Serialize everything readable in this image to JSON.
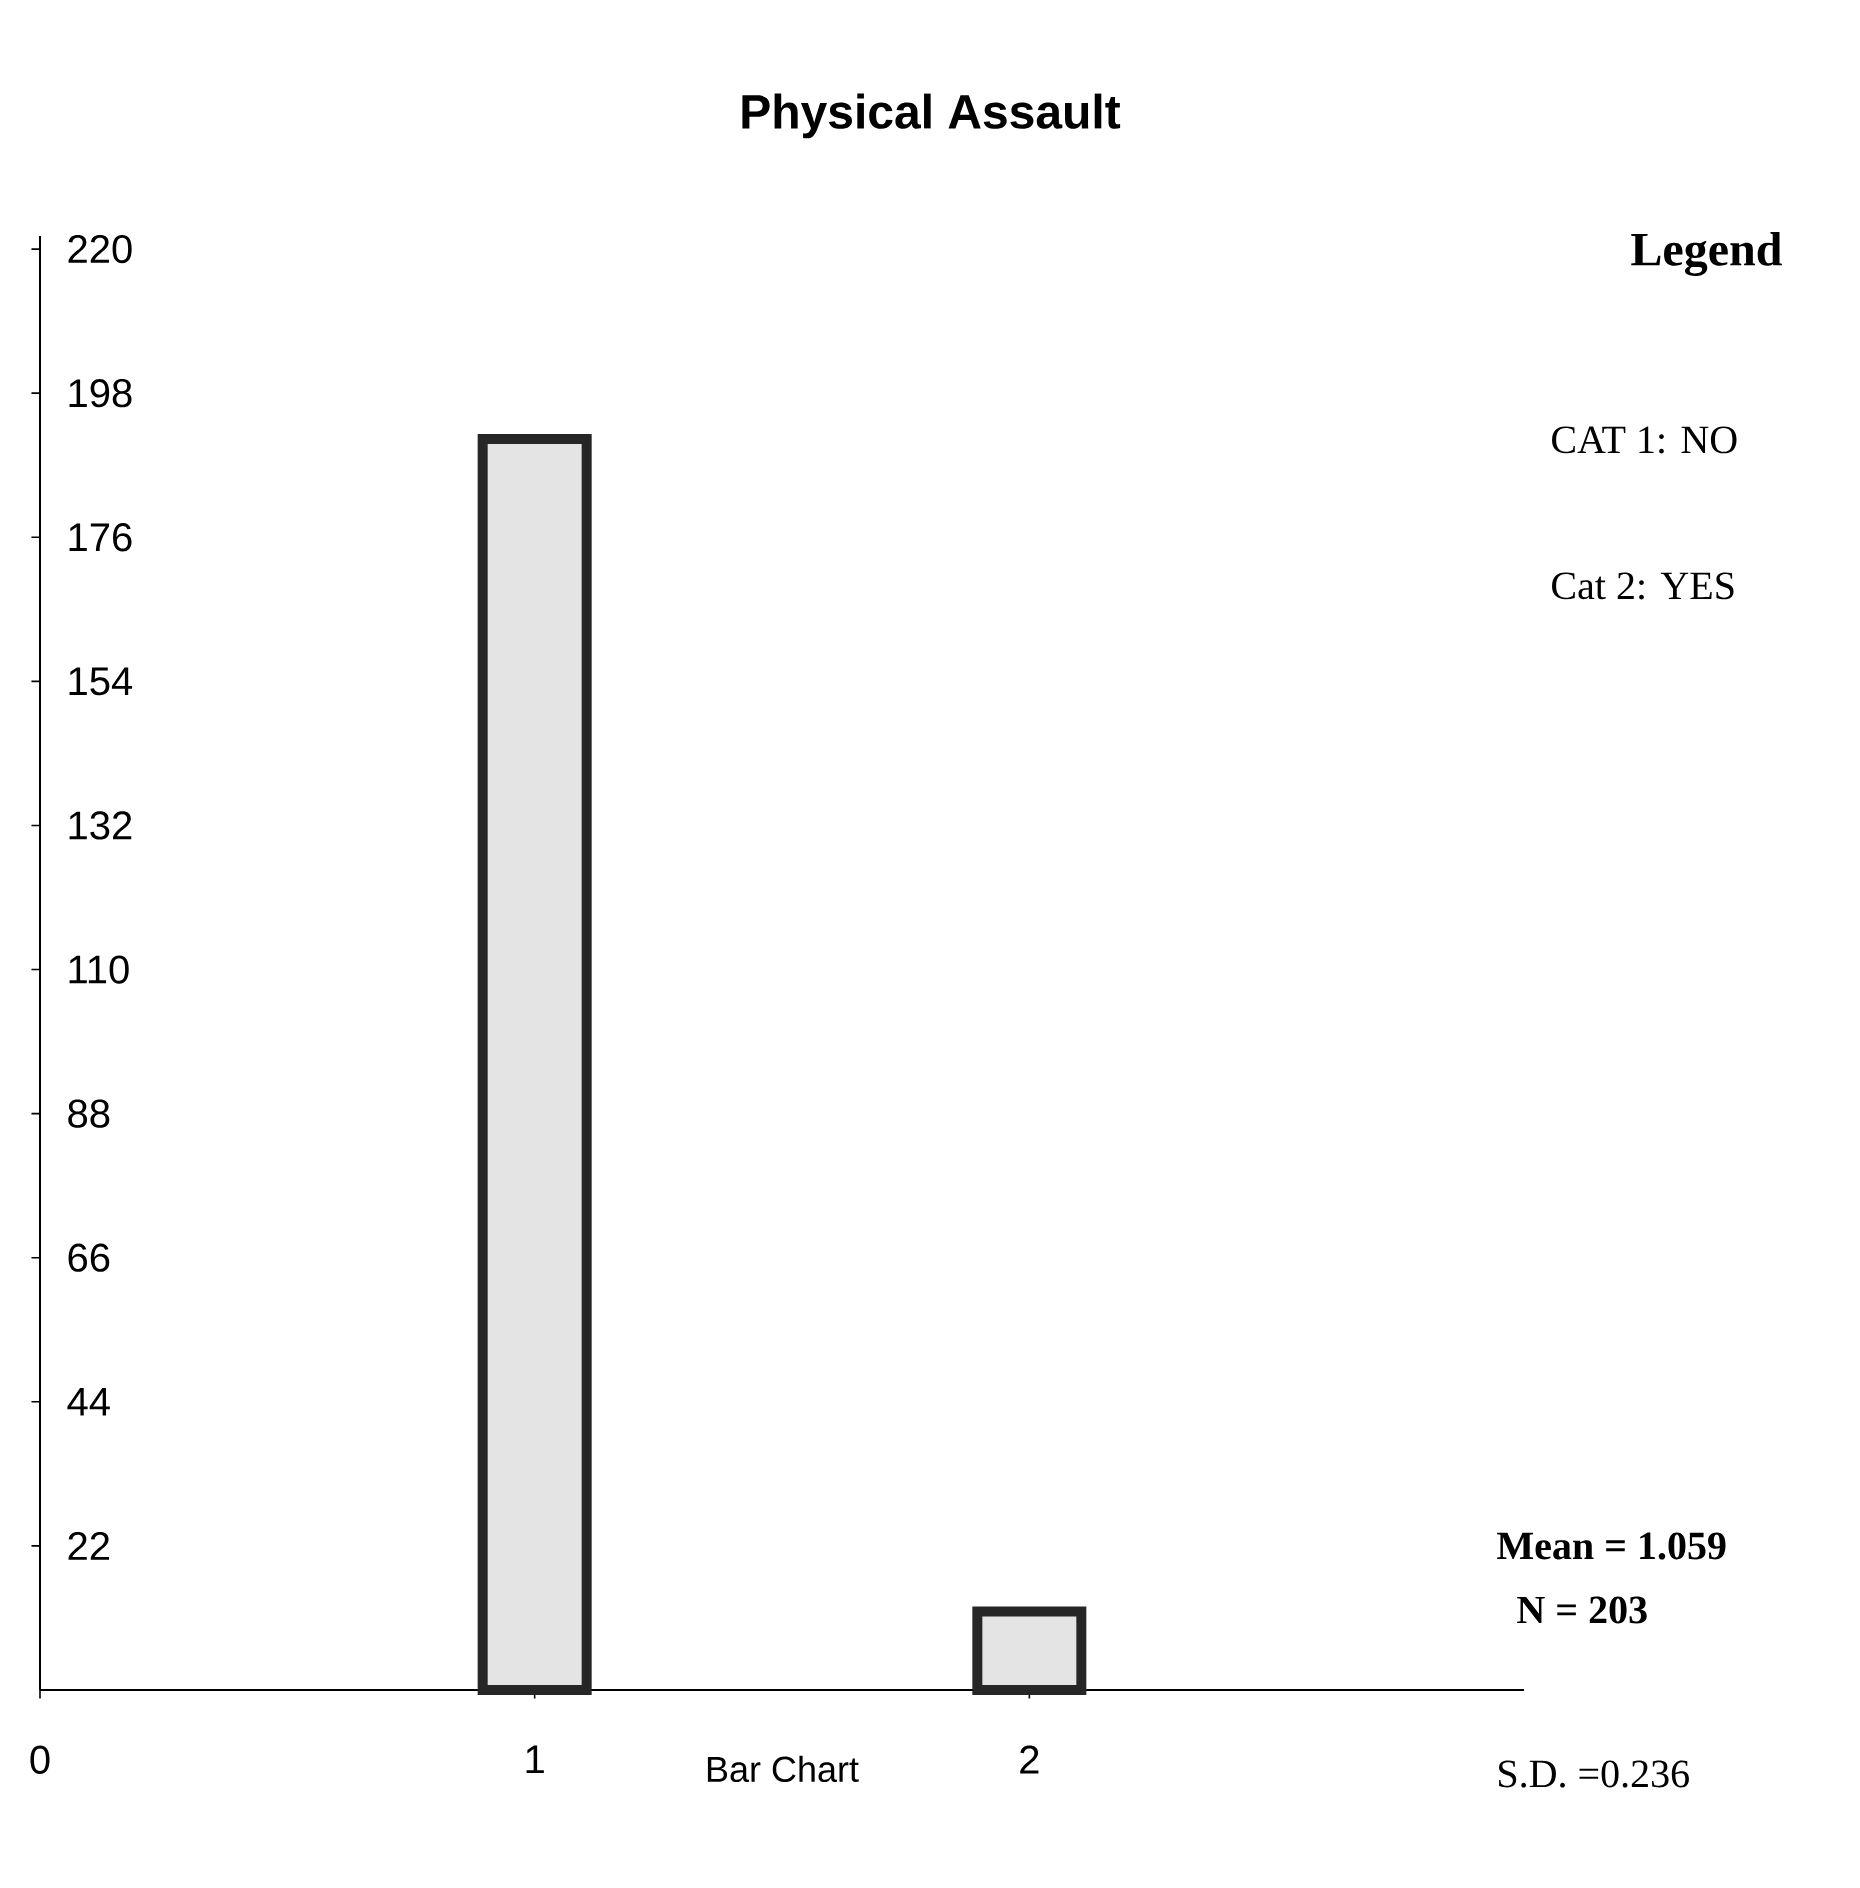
{
  "chart_data": {
    "type": "bar",
    "title": "Physical Assault",
    "xlabel": "Bar Chart",
    "x": [
      1,
      2
    ],
    "values": [
      191,
      12
    ],
    "color": "#e4e4e4",
    "xlim": [
      0,
      3
    ],
    "xticks": [
      0,
      1,
      2
    ],
    "ylim": [
      0,
      222
    ],
    "yticks": [
      22,
      44,
      66,
      88,
      110,
      132,
      154,
      176,
      198,
      220
    ],
    "annotations": [
      "Legend",
      "CAT 1: NO",
      "Cat 2: YES",
      "Mean = 1.059",
      "N = 203",
      "S.D. =0.236"
    ]
  }
}
